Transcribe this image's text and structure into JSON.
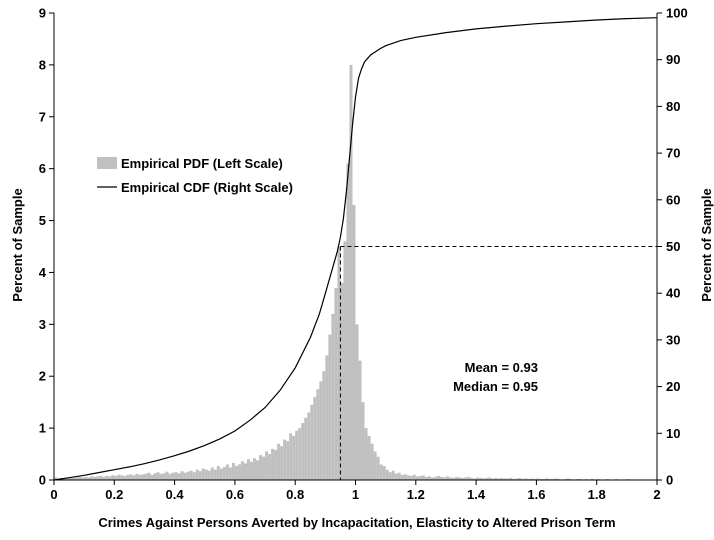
{
  "chart_data": {
    "type": "bar",
    "xlabel": "Crimes Against Persons Averted by Incapacitation, Elasticity to Altered Prison Term",
    "ylabel_left": "Percent of Sample",
    "ylabel_right": "Percent of Sample",
    "xlim": [
      0,
      2
    ],
    "ylim_left": [
      0,
      9
    ],
    "ylim_right": [
      0,
      100
    ],
    "x_ticks": [
      "0",
      "0.2",
      "0.4",
      "0.6",
      "0.8",
      "1",
      "1.2",
      "1.4",
      "1.6",
      "1.8",
      "2"
    ],
    "y_left_ticks": [
      "0",
      "1",
      "2",
      "3",
      "4",
      "5",
      "6",
      "7",
      "8",
      "9"
    ],
    "y_right_ticks": [
      "0",
      "10",
      "20",
      "30",
      "40",
      "50",
      "60",
      "70",
      "80",
      "90",
      "100"
    ],
    "legend": {
      "placement": "left-middle",
      "entries": [
        {
          "label": "Empirical PDF (Left Scale)",
          "kind": "bar",
          "color": "#c0c0c0"
        },
        {
          "label": "Empirical CDF (Right Scale)",
          "kind": "line",
          "color": "#000000"
        }
      ]
    },
    "annotations": {
      "mean": "Mean = 0.93",
      "median": "Median = 0.95"
    },
    "median_value": 0.95,
    "median_cdf_percent": 50,
    "series": [
      {
        "name": "Empirical PDF (Left Scale)",
        "axis": "left",
        "kind": "bar",
        "color": "#c0c0c0",
        "bin_width": 0.01,
        "x": [
          0.005,
          0.015,
          0.025,
          0.035,
          0.045,
          0.055,
          0.065,
          0.075,
          0.085,
          0.095,
          0.105,
          0.115,
          0.125,
          0.135,
          0.145,
          0.155,
          0.165,
          0.175,
          0.185,
          0.195,
          0.205,
          0.215,
          0.225,
          0.235,
          0.245,
          0.255,
          0.265,
          0.275,
          0.285,
          0.295,
          0.305,
          0.315,
          0.325,
          0.335,
          0.345,
          0.355,
          0.365,
          0.375,
          0.385,
          0.395,
          0.405,
          0.415,
          0.425,
          0.435,
          0.445,
          0.455,
          0.465,
          0.475,
          0.485,
          0.495,
          0.505,
          0.515,
          0.525,
          0.535,
          0.545,
          0.555,
          0.565,
          0.575,
          0.585,
          0.595,
          0.605,
          0.615,
          0.625,
          0.635,
          0.645,
          0.655,
          0.665,
          0.675,
          0.685,
          0.695,
          0.705,
          0.715,
          0.725,
          0.735,
          0.745,
          0.755,
          0.765,
          0.775,
          0.785,
          0.795,
          0.805,
          0.815,
          0.825,
          0.835,
          0.845,
          0.855,
          0.865,
          0.875,
          0.885,
          0.895,
          0.905,
          0.915,
          0.925,
          0.935,
          0.945,
          0.955,
          0.965,
          0.975,
          0.985,
          0.995,
          1.005,
          1.015,
          1.025,
          1.035,
          1.045,
          1.055,
          1.065,
          1.075,
          1.085,
          1.095,
          1.105,
          1.115,
          1.125,
          1.135,
          1.145,
          1.155,
          1.165,
          1.175,
          1.185,
          1.195,
          1.205,
          1.215,
          1.225,
          1.235,
          1.245,
          1.255,
          1.265,
          1.275,
          1.285,
          1.295,
          1.305,
          1.315,
          1.325,
          1.335,
          1.345,
          1.355,
          1.365,
          1.375,
          1.385,
          1.395,
          1.405,
          1.415,
          1.425,
          1.435,
          1.445,
          1.455,
          1.465,
          1.475,
          1.485,
          1.495,
          1.505,
          1.515,
          1.525,
          1.535,
          1.545,
          1.555,
          1.565,
          1.575,
          1.585,
          1.595,
          1.605,
          1.615,
          1.625,
          1.635,
          1.645,
          1.655,
          1.665,
          1.675,
          1.685,
          1.695,
          1.705,
          1.715,
          1.725,
          1.735,
          1.745,
          1.755,
          1.765,
          1.775,
          1.785,
          1.795,
          1.805,
          1.815,
          1.825,
          1.835,
          1.845,
          1.855,
          1.865,
          1.875,
          1.885,
          1.895,
          1.905,
          1.915,
          1.925,
          1.935,
          1.945,
          1.955,
          1.965,
          1.975,
          1.985,
          1.995
        ],
        "values": [
          0.05,
          0.03,
          0.04,
          0.03,
          0.04,
          0.05,
          0.04,
          0.05,
          0.06,
          0.05,
          0.06,
          0.05,
          0.07,
          0.06,
          0.07,
          0.08,
          0.06,
          0.08,
          0.07,
          0.09,
          0.08,
          0.1,
          0.09,
          0.08,
          0.1,
          0.11,
          0.09,
          0.12,
          0.1,
          0.11,
          0.12,
          0.14,
          0.1,
          0.13,
          0.15,
          0.12,
          0.13,
          0.16,
          0.12,
          0.14,
          0.15,
          0.13,
          0.17,
          0.14,
          0.16,
          0.18,
          0.15,
          0.2,
          0.17,
          0.22,
          0.2,
          0.18,
          0.24,
          0.2,
          0.27,
          0.22,
          0.25,
          0.3,
          0.24,
          0.33,
          0.27,
          0.3,
          0.36,
          0.32,
          0.4,
          0.35,
          0.42,
          0.38,
          0.48,
          0.45,
          0.55,
          0.5,
          0.6,
          0.58,
          0.7,
          0.65,
          0.78,
          0.75,
          0.9,
          0.85,
          0.95,
          1.0,
          1.1,
          1.2,
          1.3,
          1.45,
          1.6,
          1.75,
          1.9,
          2.1,
          2.4,
          2.8,
          3.2,
          3.7,
          4.5,
          3.8,
          4.6,
          6.1,
          8.0,
          5.3,
          3.0,
          2.3,
          1.5,
          1.0,
          0.85,
          0.7,
          0.55,
          0.45,
          0.3,
          0.27,
          0.2,
          0.15,
          0.18,
          0.12,
          0.14,
          0.1,
          0.11,
          0.09,
          0.08,
          0.1,
          0.07,
          0.08,
          0.09,
          0.06,
          0.07,
          0.05,
          0.06,
          0.08,
          0.06,
          0.05,
          0.07,
          0.05,
          0.04,
          0.06,
          0.05,
          0.04,
          0.05,
          0.06,
          0.04,
          0.03,
          0.05,
          0.04,
          0.03,
          0.04,
          0.05,
          0.03,
          0.04,
          0.03,
          0.04,
          0.03,
          0.03,
          0.04,
          0.02,
          0.03,
          0.04,
          0.02,
          0.03,
          0.02,
          0.03,
          0.02,
          0.03,
          0.02,
          0.02,
          0.03,
          0.02,
          0.02,
          0.03,
          0.02,
          0.01,
          0.02,
          0.03,
          0.02,
          0.01,
          0.02,
          0.02,
          0.01,
          0.02,
          0.01,
          0.02,
          0.01,
          0.02,
          0.01,
          0.01,
          0.02,
          0.01,
          0.01,
          0.02,
          0.01,
          0.01,
          0.01,
          0.02,
          0.01,
          0.01,
          0.01,
          0.01,
          0.01,
          0.01,
          0.01,
          0.01,
          0.01
        ]
      },
      {
        "name": "Empirical CDF (Right Scale)",
        "axis": "right",
        "kind": "line",
        "color": "#000000",
        "x": [
          0,
          0.05,
          0.1,
          0.15,
          0.2,
          0.25,
          0.3,
          0.35,
          0.4,
          0.45,
          0.5,
          0.55,
          0.6,
          0.65,
          0.7,
          0.75,
          0.8,
          0.85,
          0.88,
          0.9,
          0.92,
          0.94,
          0.95,
          0.96,
          0.97,
          0.98,
          0.99,
          1.0,
          1.01,
          1.02,
          1.03,
          1.05,
          1.08,
          1.1,
          1.15,
          1.2,
          1.3,
          1.4,
          1.5,
          1.6,
          1.7,
          1.8,
          1.9,
          2.0
        ],
        "values": [
          0,
          0.5,
          1.0,
          1.6,
          2.2,
          2.8,
          3.5,
          4.3,
          5.2,
          6.2,
          7.4,
          8.8,
          10.5,
          12.8,
          15.5,
          19.2,
          24.0,
          30.5,
          35.5,
          40.0,
          44.5,
          49.0,
          52.0,
          56.0,
          62.0,
          69.0,
          76.0,
          82.0,
          86.0,
          88.0,
          89.5,
          91.0,
          92.3,
          93.0,
          94.1,
          94.8,
          95.8,
          96.6,
          97.2,
          97.7,
          98.1,
          98.5,
          98.8,
          99.0
        ]
      }
    ]
  }
}
